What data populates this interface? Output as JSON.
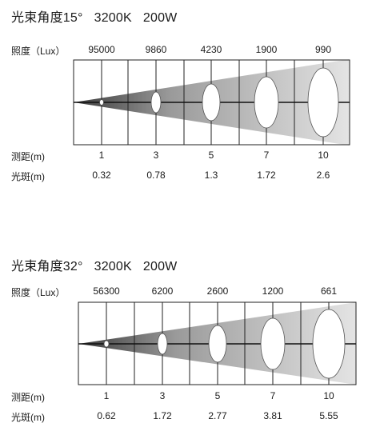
{
  "panels": [
    {
      "title_prefix": "光束角度15°",
      "color_temp": "3200K",
      "power": "200W",
      "lux_label": "照度（Lux）",
      "lux_values": [
        "95000",
        "9860",
        "4230",
        "1900",
        "990"
      ],
      "distance_label": "测距(m)",
      "distances": [
        "1",
        "3",
        "5",
        "7",
        "10"
      ],
      "spot_label": "光斑(m)",
      "spots": [
        "0.32",
        "0.78",
        "1.3",
        "1.72",
        "2.6"
      ]
    },
    {
      "title_prefix": "光束角度32°",
      "color_temp": "3200K",
      "power": "200W",
      "lux_label": "照度（Lux）",
      "lux_values": [
        "56300",
        "6200",
        "2600",
        "1200",
        "661"
      ],
      "distance_label": "测距(m)",
      "distances": [
        "1",
        "3",
        "5",
        "7",
        "10"
      ],
      "spot_label": "光斑(m)",
      "spots": [
        "0.62",
        "1.72",
        "2.77",
        "3.81",
        "5.55"
      ]
    }
  ]
}
